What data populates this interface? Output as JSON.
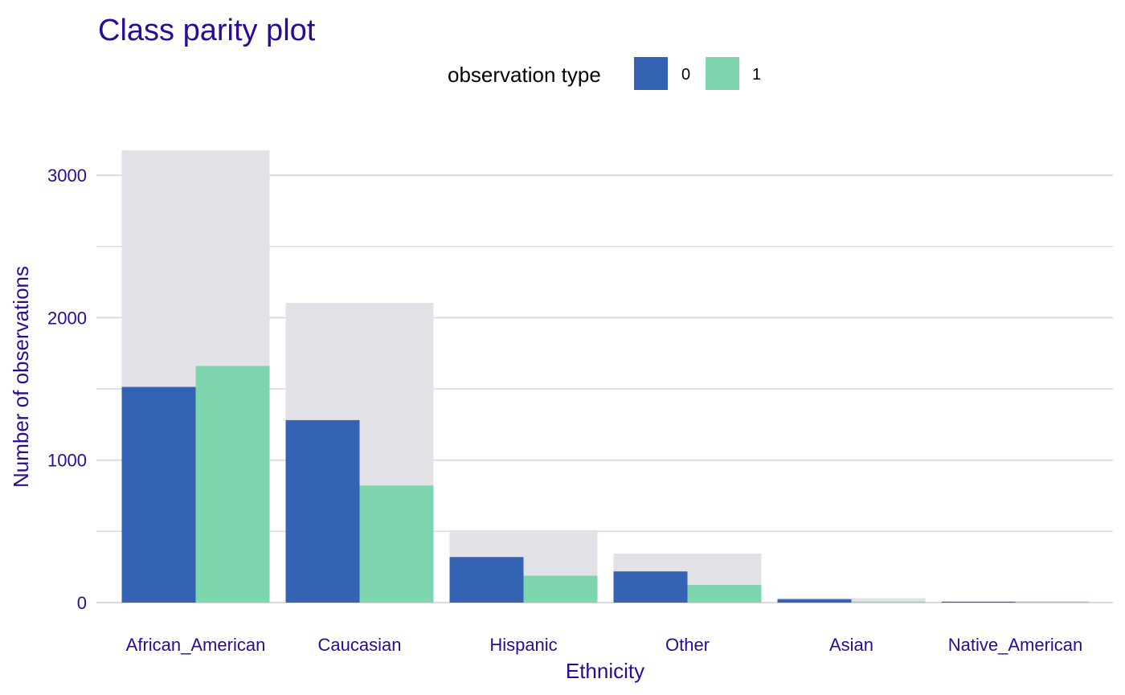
{
  "chart_data": {
    "type": "bar",
    "title": "Class parity plot",
    "xlabel": "Ethnicity",
    "ylabel": "Number of observations",
    "legend": {
      "title": "observation type",
      "position": "top-center",
      "entries": [
        "0",
        "1"
      ]
    },
    "categories": [
      "African_American",
      "Caucasian",
      "Hispanic",
      "Other",
      "Asian",
      "Native_American"
    ],
    "totals": [
      3175,
      2103,
      509,
      343,
      31,
      11
    ],
    "series": [
      {
        "name": "0",
        "values": [
          1514,
          1281,
          320,
          219,
          24,
          6
        ]
      },
      {
        "name": "1",
        "values": [
          1661,
          822,
          189,
          124,
          7,
          5
        ]
      }
    ],
    "ylim": [
      0,
      3350
    ],
    "yticks": [
      0,
      1000,
      2000,
      3000
    ],
    "grid": true
  },
  "colors": {
    "title": "#2d0a94",
    "text": "#2d0a94",
    "series_0": "#3563b3",
    "series_1": "#7dd6ae",
    "total_bar": "#e2e1e8",
    "grid": "#dcdce0"
  }
}
